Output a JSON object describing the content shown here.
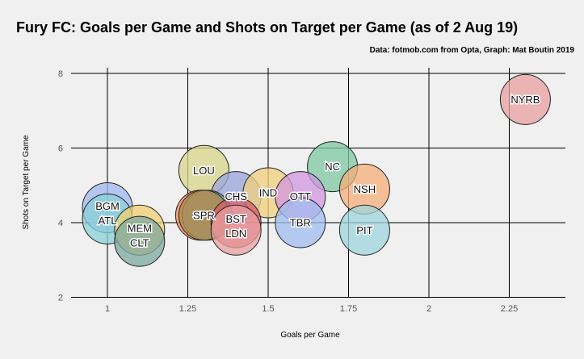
{
  "chart_data": {
    "type": "scatter",
    "title": "Fury FC: Goals per Game and Shots on Target per Game (as of 2 Aug 19)",
    "subtitle": "Data: fotmob.com from Opta, Graph: Mat Boutin 2019",
    "xlabel": "Goals per Game",
    "ylabel": "Shots on Target per Game",
    "xlim": [
      0.89,
      2.43
    ],
    "ylim": [
      2,
      8.1
    ],
    "xticks": [
      1,
      1.25,
      1.5,
      1.75,
      2,
      2.25
    ],
    "xtick_labels": [
      "1",
      "1.25",
      "1.5",
      "1.75",
      "2",
      "2.25"
    ],
    "yticks": [
      2,
      4,
      6,
      8
    ],
    "ytick_labels": [
      "2",
      "4",
      "6",
      "8"
    ],
    "grid": true,
    "points": [
      {
        "label": "NYRB",
        "x": 2.3,
        "y": 7.3,
        "color": "#e8a0a0"
      },
      {
        "label": "NC",
        "x": 1.7,
        "y": 5.5,
        "color": "#7cc8a0"
      },
      {
        "label": "NSH",
        "x": 1.8,
        "y": 4.9,
        "color": "#f5ae78"
      },
      {
        "label": "PIT",
        "x": 1.8,
        "y": 3.8,
        "color": "#9ed6dc"
      },
      {
        "label": "LOU",
        "x": 1.3,
        "y": 5.4,
        "color": "#d8d68a"
      },
      {
        "label": "CHS",
        "x": 1.4,
        "y": 4.7,
        "color": "#98a4dc"
      },
      {
        "label": "IND",
        "x": 1.5,
        "y": 4.8,
        "color": "#f2d07c"
      },
      {
        "label": "OTT",
        "x": 1.6,
        "y": 4.7,
        "color": "#d296e0"
      },
      {
        "label": "TBR",
        "x": 1.6,
        "y": 4.0,
        "color": "#a0bcf0"
      },
      {
        "label": "",
        "x": 1.29,
        "y": 4.2,
        "color": "#f08858"
      },
      {
        "label": "",
        "x": 1.31,
        "y": 4.2,
        "color": "#58a898"
      },
      {
        "label": "SPR",
        "x": 1.3,
        "y": 4.2,
        "color": "#b8884c"
      },
      {
        "label": "BST",
        "x": 1.4,
        "y": 4.0,
        "color": "#d85c6c"
      },
      {
        "label": "LDN",
        "x": 1.4,
        "y": 3.8,
        "color": "#e8a0a0"
      },
      {
        "label": "BGM",
        "x": 1.0,
        "y": 4.4,
        "color": "#a0b8f0"
      },
      {
        "label": "ATL",
        "x": 1.0,
        "y": 4.1,
        "color": "#88d0d8"
      },
      {
        "label": "MEM",
        "x": 1.1,
        "y": 3.8,
        "color": "#f0d070"
      },
      {
        "label": "CLT",
        "x": 1.1,
        "y": 3.5,
        "color": "#7ea8a0"
      }
    ]
  }
}
